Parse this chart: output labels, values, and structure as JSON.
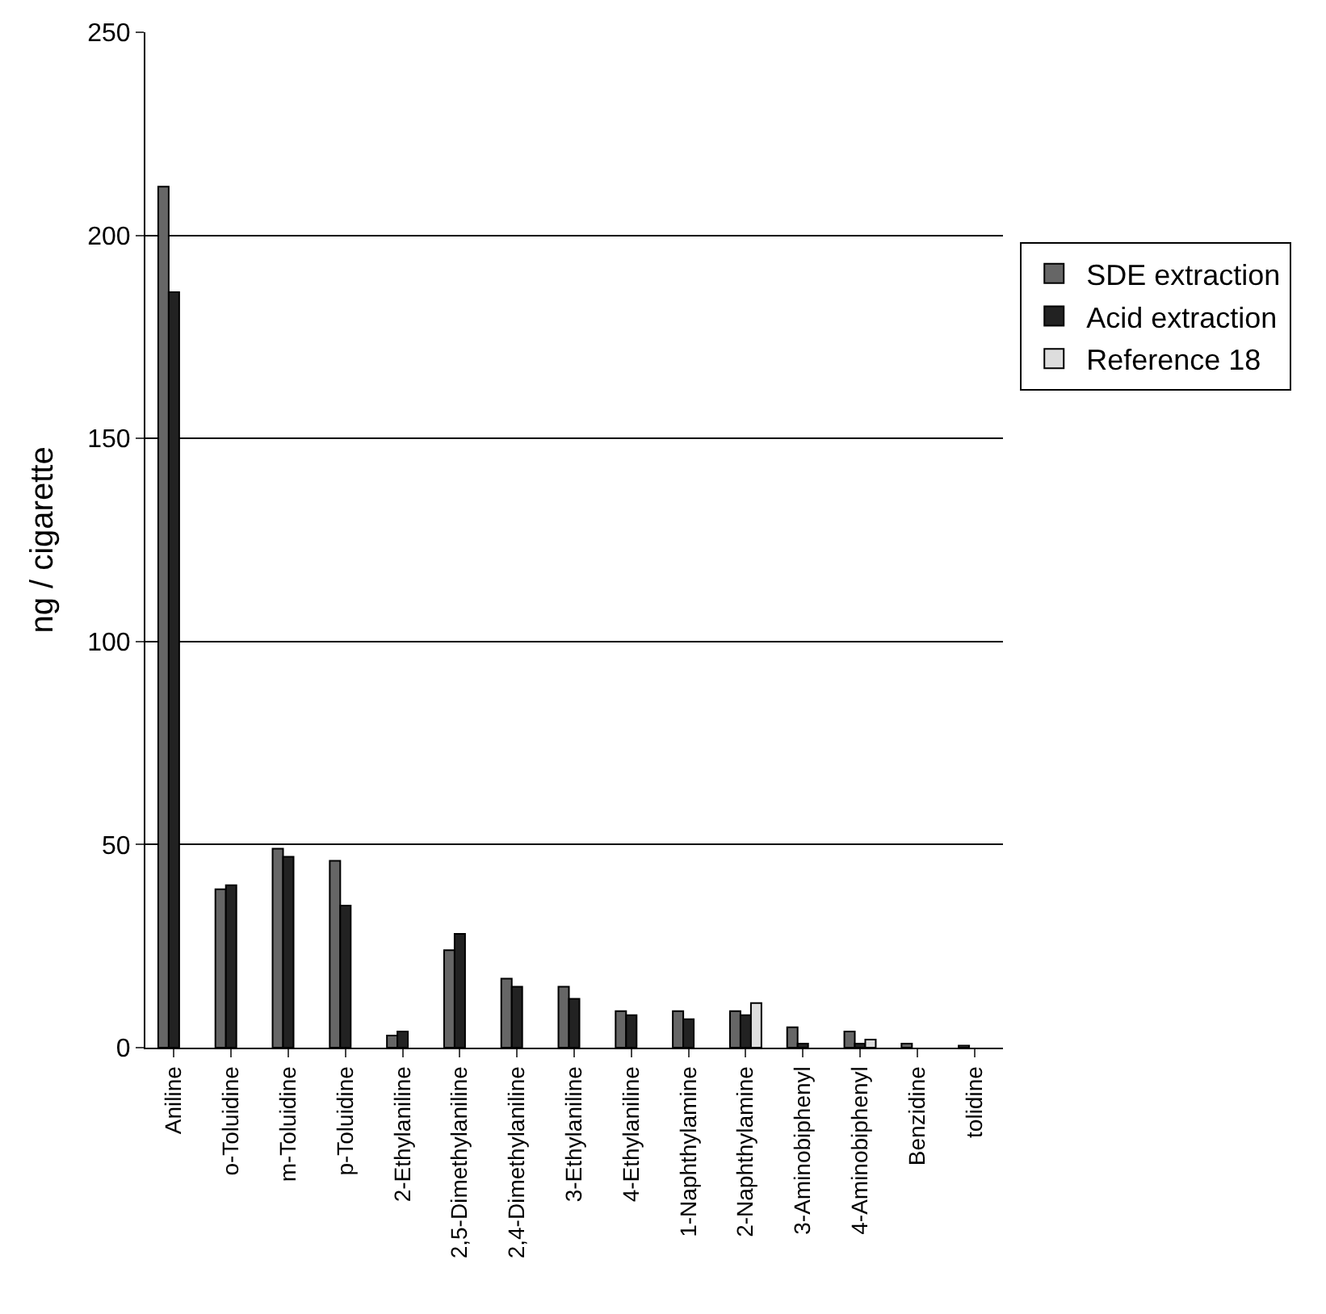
{
  "chart_data": {
    "type": "bar",
    "ylabel": "ng / cigarette",
    "categories": [
      "Aniline",
      "o-Toluidine",
      "m-Toluidine",
      "p-Toluidine",
      "2-Ethylaniline",
      "2,5-Dimethylaniline",
      "2,4-Dimethylaniline",
      "3-Ethylaniline",
      "4-Ethylaniline",
      "1-Naphthylamine",
      "2-Naphthylamine",
      "3-Aminobiphenyl",
      "4-Aminobiphenyl",
      "Benzidine",
      "tolidine"
    ],
    "series": [
      {
        "name": "SDE extraction",
        "color": "#666666",
        "values": [
          212,
          39,
          49,
          46,
          3,
          24,
          17,
          15,
          9,
          9,
          9,
          5,
          4,
          1,
          0.5
        ]
      },
      {
        "name": "Acid extraction",
        "color": "#222222",
        "values": [
          186,
          40,
          47,
          35,
          4,
          28,
          15,
          12,
          8,
          7,
          8,
          1,
          1,
          null,
          null
        ]
      },
      {
        "name": "Reference 18",
        "color": "#dddddd",
        "values": [
          null,
          null,
          null,
          null,
          null,
          null,
          null,
          null,
          null,
          null,
          11,
          null,
          2,
          null,
          null
        ]
      }
    ],
    "ylim": [
      0,
      250
    ],
    "yticks": [
      0,
      50,
      100,
      150,
      200,
      250
    ],
    "grid": "y",
    "legend": "right"
  }
}
